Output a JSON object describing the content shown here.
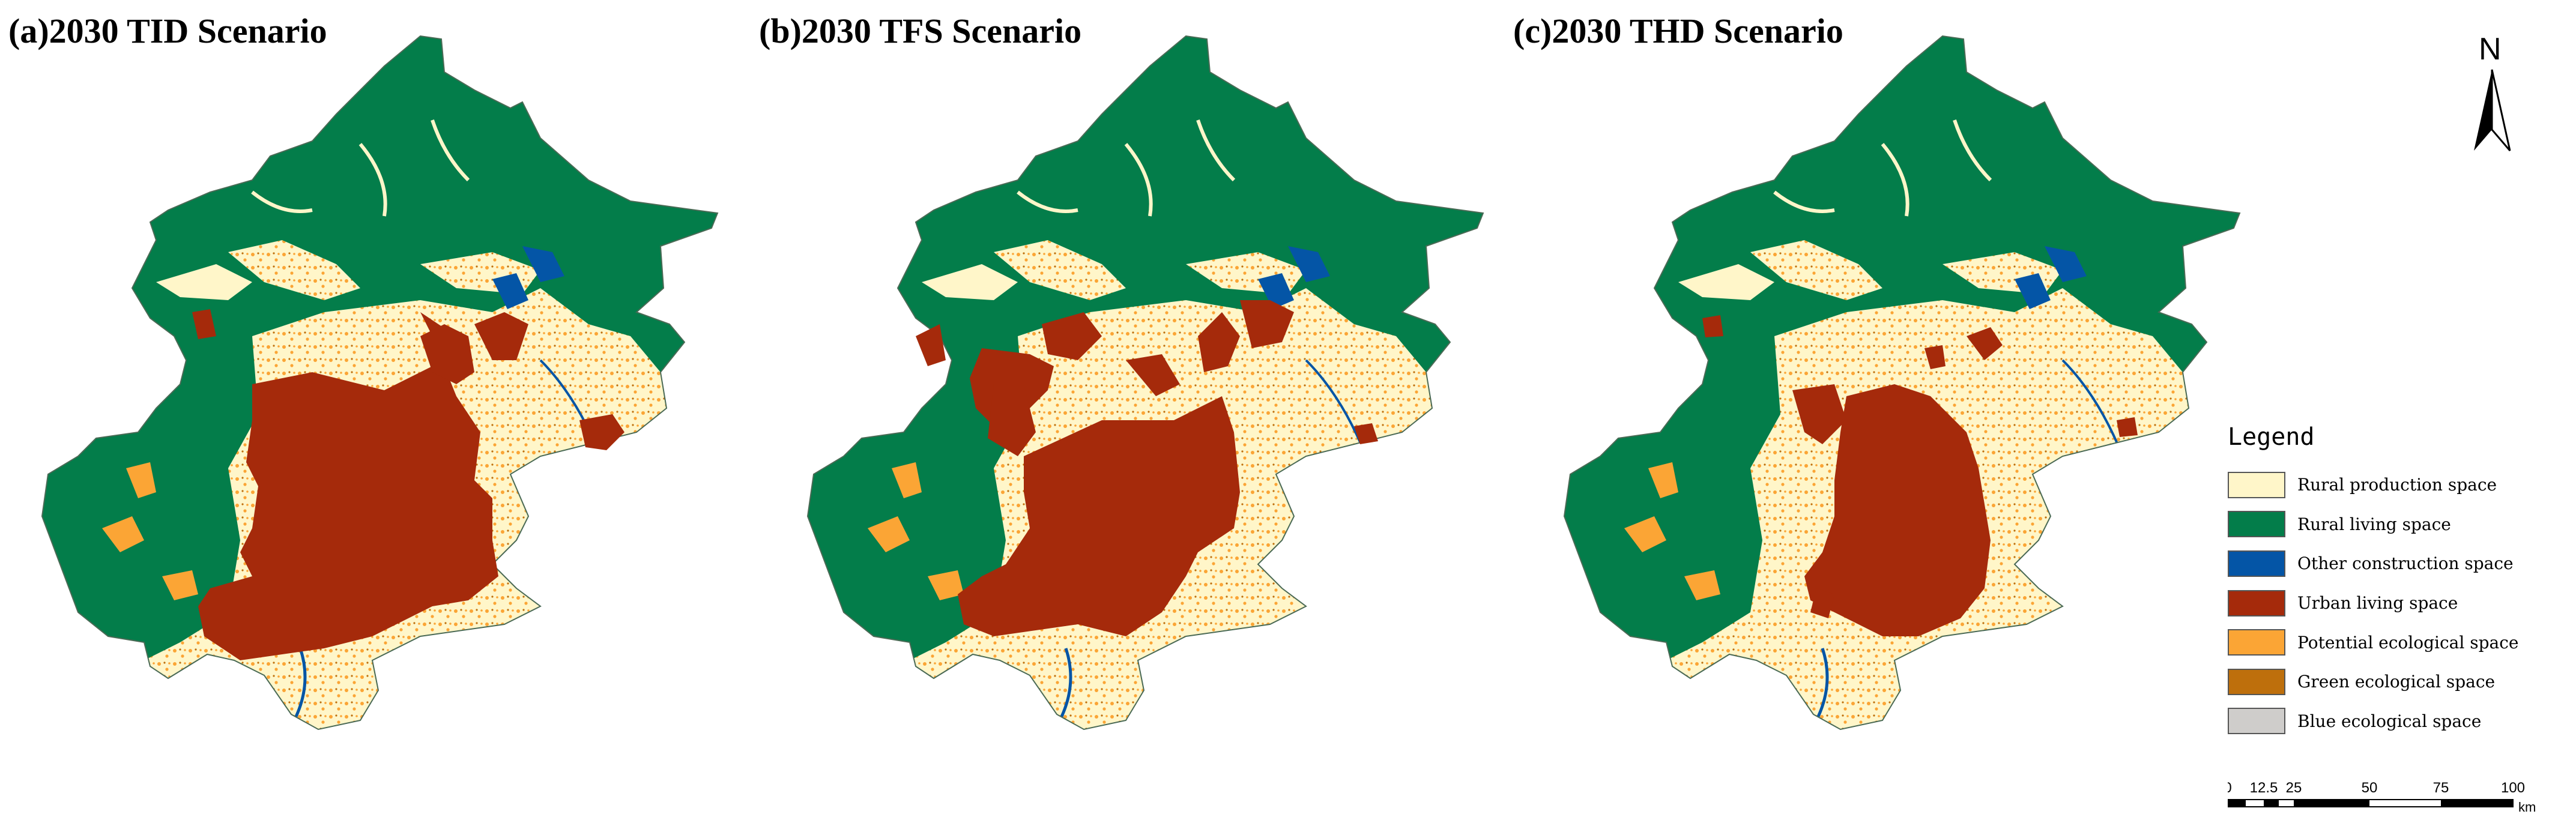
{
  "panels": [
    {
      "id": "a",
      "title": "(a)2030 TID Scenario"
    },
    {
      "id": "b",
      "title": "(b)2030 TFS Scenario"
    },
    {
      "id": "c",
      "title": "(c)2030 THD Scenario"
    }
  ],
  "north_arrow": {
    "label": "N"
  },
  "legend": {
    "title": "Legend",
    "items": [
      {
        "label": "Rural production space",
        "color": "#FFF6C9"
      },
      {
        "label": "Rural living space",
        "color": "#037D4A"
      },
      {
        "label": "Other construction space",
        "color": "#0455A6"
      },
      {
        "label": "Urban living space",
        "color": "#A52A0B"
      },
      {
        "label": "Potential ecological space",
        "color": "#FBA535"
      },
      {
        "label": "Green ecological space",
        "color": "#BE6F0C"
      },
      {
        "label": "Blue ecological space",
        "color": "#CFCDCB"
      }
    ]
  },
  "scale_bar": {
    "ticks": [
      "0",
      "12.5",
      "25",
      "50",
      "75",
      "100"
    ],
    "unit": "km"
  }
}
